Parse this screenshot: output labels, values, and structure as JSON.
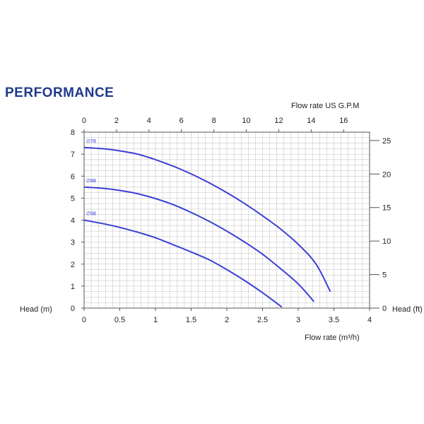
{
  "title": "PERFORMANCE",
  "colors": {
    "title": "#1f3a8a",
    "curve": "#3b3fd6",
    "grid": "#bdbdbd",
    "frame": "#555555"
  },
  "chart_data": {
    "type": "line",
    "title": "PERFORMANCE",
    "xlabel": "Flow rate  (m³/h)",
    "ylabel": "Head (m)",
    "x2label": "Flow rate US  G.P.M",
    "y2label": "Head (ft)",
    "xlim": [
      0,
      4
    ],
    "ylim": [
      0,
      8
    ],
    "x2lim": [
      0,
      17.6
    ],
    "y2lim": [
      0,
      26.25
    ],
    "grid": true,
    "x_ticks": [
      "0",
      "0.5",
      "1",
      "1.5",
      "2",
      "2.5",
      "3",
      "3.5",
      "4"
    ],
    "y_ticks": [
      "0",
      "1",
      "2",
      "3",
      "4",
      "5",
      "6",
      "7",
      "8"
    ],
    "x2_ticks": [
      "0",
      "2",
      "4",
      "6",
      "8",
      "10",
      "12",
      "14",
      "16"
    ],
    "y2_ticks": [
      "0",
      "5",
      "10",
      "15",
      "20",
      "25"
    ],
    "series": [
      {
        "name": "∅78",
        "x": [
          0,
          0.25,
          0.5,
          0.75,
          1.0,
          1.25,
          1.5,
          1.75,
          2.0,
          2.25,
          2.5,
          2.75,
          3.0,
          3.25,
          3.45
        ],
        "y": [
          7.3,
          7.25,
          7.15,
          7.0,
          6.75,
          6.45,
          6.1,
          5.7,
          5.25,
          4.75,
          4.2,
          3.6,
          2.9,
          2.0,
          0.75
        ]
      },
      {
        "name": "∅68",
        "x": [
          0,
          0.25,
          0.5,
          0.75,
          1.0,
          1.25,
          1.5,
          1.75,
          2.0,
          2.25,
          2.5,
          2.75,
          3.0,
          3.22
        ],
        "y": [
          5.5,
          5.45,
          5.35,
          5.2,
          4.98,
          4.7,
          4.35,
          3.95,
          3.5,
          3.0,
          2.45,
          1.8,
          1.1,
          0.3
        ]
      },
      {
        "name": "∅58",
        "x": [
          0,
          0.25,
          0.5,
          0.75,
          1.0,
          1.25,
          1.5,
          1.75,
          2.0,
          2.25,
          2.5,
          2.77
        ],
        "y": [
          4.0,
          3.85,
          3.67,
          3.45,
          3.2,
          2.88,
          2.55,
          2.2,
          1.75,
          1.25,
          0.7,
          0.05
        ]
      }
    ]
  }
}
